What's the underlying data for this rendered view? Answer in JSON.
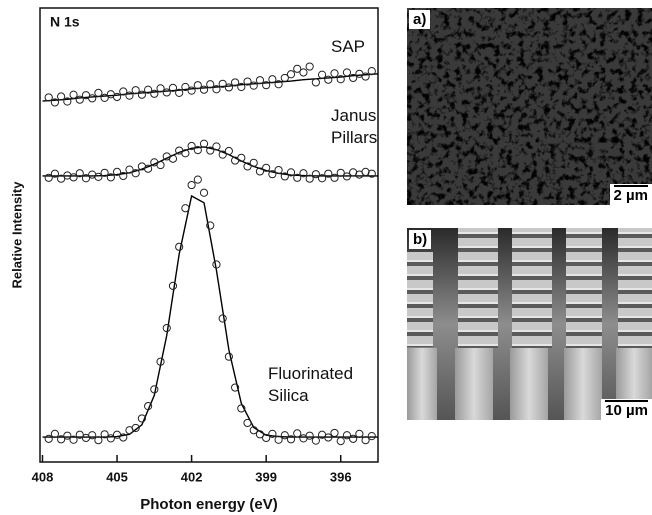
{
  "chart_data": {
    "type": "scatter",
    "annotation": "N 1s",
    "x_label": "Photon energy (eV)",
    "y_label": "Relative Intensity",
    "xlim": [
      408.1,
      394.5
    ],
    "ylim": [
      0,
      100
    ],
    "xticks": [
      408,
      405,
      402,
      399,
      396
    ],
    "x": [
      407.75,
      407.5,
      407.25,
      407,
      406.75,
      406.5,
      406.25,
      406,
      405.75,
      405.5,
      405.25,
      405,
      404.75,
      404.5,
      404.25,
      404,
      403.75,
      403.5,
      403.25,
      403,
      402.75,
      402.5,
      402.25,
      402,
      401.75,
      401.5,
      401.25,
      401,
      400.75,
      400.5,
      400.25,
      400,
      399.75,
      399.5,
      399.25,
      399,
      398.75,
      398.5,
      398.25,
      398,
      397.75,
      397.5,
      397.25,
      397,
      396.75,
      396.5,
      396.25,
      396,
      395.75,
      395.5,
      395.25,
      395,
      394.75
    ],
    "fit_x": [
      408,
      407.5,
      407,
      406.5,
      406,
      405.5,
      405,
      404.5,
      404,
      403.5,
      403,
      402.5,
      402,
      401.5,
      401,
      400.5,
      400,
      399.5,
      399,
      398.5,
      398,
      397.5,
      397,
      396.5,
      396,
      395.5,
      395,
      394.5
    ],
    "series": [
      {
        "name": "SAP",
        "color": "#222222",
        "values": [
          80.3,
          79.2,
          80.5,
          79.4,
          80.9,
          79.8,
          80.8,
          80.1,
          81.3,
          80.2,
          81.0,
          80.4,
          81.6,
          80.7,
          81.9,
          80.9,
          82.0,
          81.1,
          82.3,
          81.4,
          82.4,
          81.3,
          82.6,
          81.8,
          83.0,
          82.0,
          83.2,
          82.1,
          83.3,
          82.5,
          83.6,
          82.6,
          83.8,
          82.9,
          84.1,
          83.0,
          84.3,
          83.2,
          84.6,
          85.4,
          86.6,
          85.8,
          87.1,
          83.6,
          85.3,
          84.2,
          85.6,
          84.3,
          85.8,
          84.6,
          85.5,
          84.9,
          86.1
        ],
        "fit": [
          79.5,
          79.7,
          79.9,
          80.2,
          80.4,
          80.6,
          80.8,
          81.1,
          81.3,
          81.5,
          81.7,
          81.9,
          82.2,
          82.4,
          82.6,
          82.8,
          83.1,
          83.3,
          83.5,
          83.7,
          83.9,
          84.2,
          84.4,
          84.6,
          84.8,
          85.1,
          85.3,
          85.5
        ]
      },
      {
        "name": "Janus Pillars",
        "color": "#222222",
        "values": [
          62.6,
          63.5,
          62.4,
          63.1,
          62.7,
          63.6,
          62.5,
          63.3,
          62.8,
          63.7,
          62.7,
          63.9,
          63.0,
          64.4,
          63.6,
          65.1,
          64.6,
          66.0,
          65.4,
          67.3,
          66.8,
          68.6,
          68.0,
          69.6,
          68.7,
          70.1,
          68.6,
          69.5,
          67.7,
          68.5,
          66.4,
          67.0,
          65.1,
          65.9,
          64.0,
          64.8,
          63.4,
          64.3,
          62.9,
          63.8,
          62.6,
          63.6,
          62.4,
          63.4,
          62.5,
          63.5,
          62.6,
          63.7,
          62.9,
          63.8,
          63.3,
          63.9,
          63.5
        ],
        "fit": [
          63.0,
          63.0,
          63.0,
          63.0,
          63.0,
          63.1,
          63.3,
          63.7,
          64.5,
          65.6,
          66.9,
          68.2,
          69.1,
          69.4,
          68.8,
          67.7,
          66.3,
          65.1,
          64.2,
          63.6,
          63.2,
          63.1,
          63.0,
          63.0,
          63.0,
          63.0,
          63.0,
          63.0
        ]
      },
      {
        "name": "Fluorinated Silica",
        "color": "#222222",
        "values": [
          5.1,
          6.2,
          5.0,
          5.8,
          4.9,
          6.0,
          5.3,
          5.9,
          4.8,
          6.1,
          5.2,
          6.0,
          5.4,
          7.0,
          7.5,
          9.6,
          12.3,
          16.0,
          22.1,
          29.5,
          38.8,
          47.4,
          55.9,
          61.0,
          62.2,
          59.3,
          52.1,
          43.5,
          31.6,
          23.2,
          16.4,
          11.8,
          8.6,
          7.0,
          6.1,
          5.3,
          6.2,
          4.9,
          5.9,
          5.0,
          6.3,
          5.2,
          5.8,
          4.7,
          6.0,
          5.4,
          6.4,
          4.6,
          5.9,
          5.1,
          6.2,
          4.8,
          5.7
        ],
        "fit": [
          5.5,
          5.5,
          5.5,
          5.5,
          5.5,
          5.5,
          5.6,
          6.1,
          8.2,
          14.7,
          27.9,
          45.8,
          58.6,
          57.1,
          42.2,
          24.7,
          12.9,
          7.6,
          5.9,
          5.6,
          5.5,
          5.5,
          5.5,
          5.5,
          5.5,
          5.5,
          5.5,
          5.5
        ]
      }
    ]
  },
  "panels": [
    {
      "label": "a)",
      "scale_bar": "2 µm"
    },
    {
      "label": "b)",
      "scale_bar": "10 µm"
    }
  ]
}
